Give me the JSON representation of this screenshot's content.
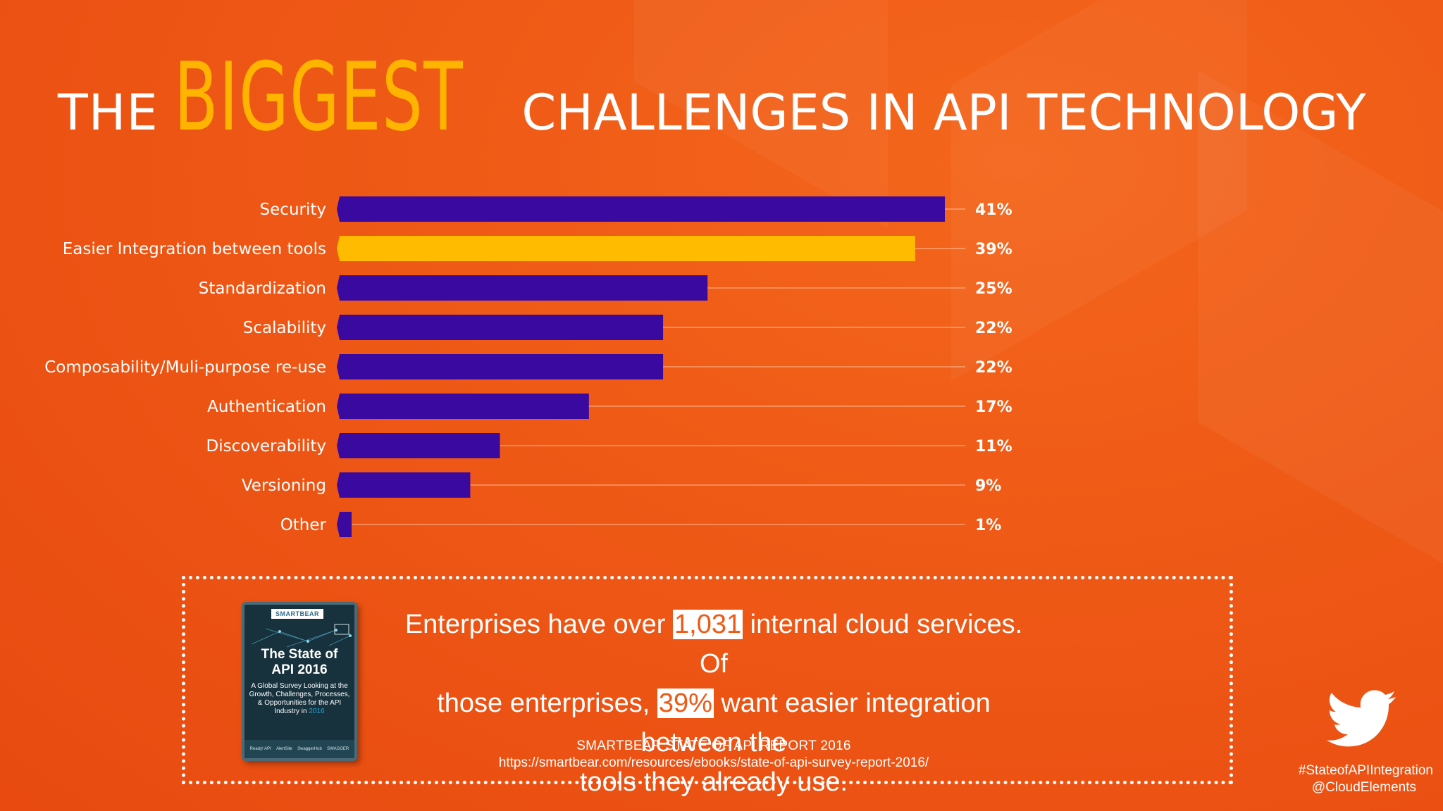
{
  "title": {
    "part1": "THE",
    "part2": "BIGGEST",
    "part3": "CHALLENGES IN API TECHNOLOGY"
  },
  "colors": {
    "background": "#ef5a16",
    "bar_default": "#3a0aa0",
    "bar_highlight": "#ffbb00",
    "title_accent": "#ffb400"
  },
  "chart_data": {
    "type": "bar",
    "orientation": "horizontal",
    "categories": [
      "Security",
      "Easier Integration between tools",
      "Standardization",
      "Scalability",
      "Composability/Muli-purpose re-use",
      "Authentication",
      "Discoverability",
      "Versioning",
      "Other"
    ],
    "values": [
      41,
      39,
      25,
      22,
      22,
      17,
      11,
      9,
      1
    ],
    "value_labels": [
      "41%",
      "39%",
      "25%",
      "22%",
      "22%",
      "17%",
      "11%",
      "9%",
      "1%"
    ],
    "highlight_index": 1,
    "xlim": [
      0,
      41
    ],
    "grid": false,
    "legend": "none"
  },
  "info": {
    "line1_pre": "Enterprises have over ",
    "line1_hl": "1,031",
    "line1_post": " internal cloud services. Of",
    "line2_pre": "those enterprises, ",
    "line2_hl": "39%",
    "line2_post": " want easier integration between the",
    "line3": "tools they already use.",
    "source_name": "SMARTBEAR STATE OF API REPORT 2016",
    "source_url": "https://smartbear.com/resources/ebooks/state-of-api-survey-report-2016/"
  },
  "report_cover": {
    "logo": "SMARTBEAR",
    "title_line1": "The State of",
    "title_line2": "API 2016",
    "subtitle": "A Global Survey Looking at the Growth, Challenges, Processes, & Opportunities for the API Industry in",
    "year": "2016",
    "footer": [
      "Ready! API",
      "AlertSite",
      "SwaggerHub",
      "SWAGGER"
    ]
  },
  "social": {
    "icon": "twitter-bird-icon",
    "hashtag": "#StateofAPIIntegration",
    "handle": "@CloudElements"
  }
}
